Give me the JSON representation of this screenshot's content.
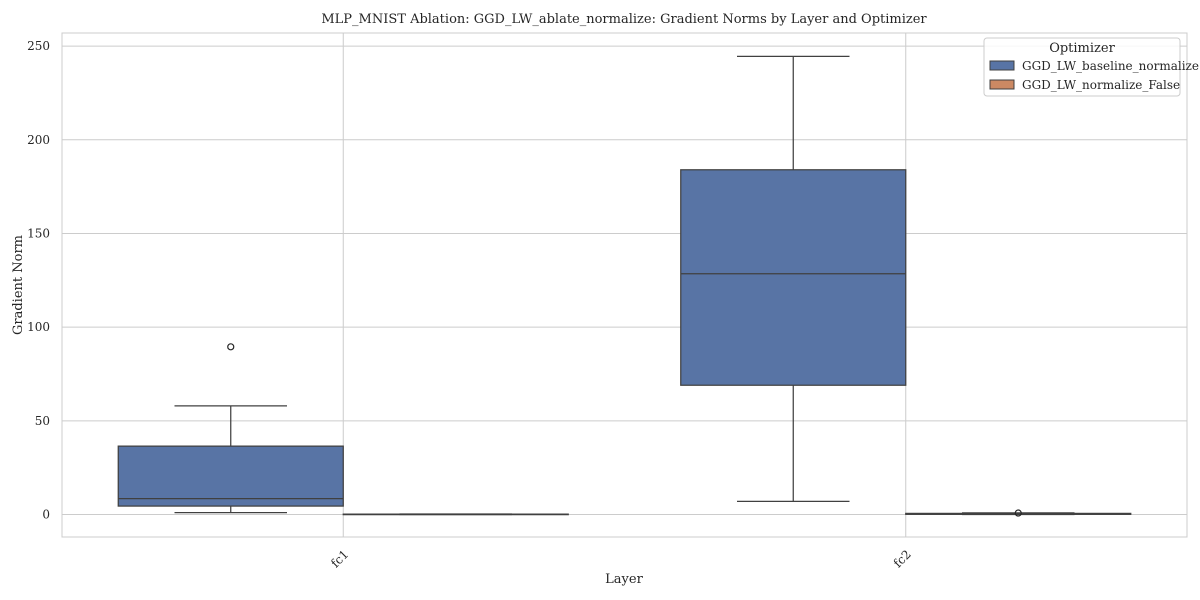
{
  "chart_data": {
    "type": "box",
    "title": "MLP_MNIST Ablation: GGD_LW_ablate_normalize: Gradient Norms by Layer and Optimizer",
    "xlabel": "Layer",
    "ylabel": "Gradient Norm",
    "categories": [
      "fc1",
      "fc2"
    ],
    "ylim": [
      -12,
      257
    ],
    "yticks": [
      0,
      50,
      100,
      150,
      200,
      250
    ],
    "grid": true,
    "legend": {
      "title": "Optimizer",
      "position": "top-right"
    },
    "series": [
      {
        "name": "GGD_LW_baseline_normalize",
        "color": "#5874a5",
        "boxes": [
          {
            "category": "fc1",
            "whislo": 1,
            "q1": 4.5,
            "median": 8.5,
            "q3": 36.5,
            "whishi": 58,
            "fliers": [
              89.5
            ]
          },
          {
            "category": "fc2",
            "whislo": 7,
            "q1": 69,
            "median": 128.5,
            "q3": 184,
            "whishi": 244.5,
            "fliers": []
          }
        ]
      },
      {
        "name": "GGD_LW_normalize_False",
        "color": "#cc8963",
        "boxes": [
          {
            "category": "fc1",
            "whislo": 0.0,
            "q1": 0.05,
            "median": 0.1,
            "q3": 0.2,
            "whishi": 0.3,
            "fliers": []
          },
          {
            "category": "fc2",
            "whislo": 0.0,
            "q1": 0.1,
            "median": 0.3,
            "q3": 0.6,
            "whishi": 0.9,
            "fliers": [
              0.8
            ]
          }
        ]
      }
    ]
  }
}
